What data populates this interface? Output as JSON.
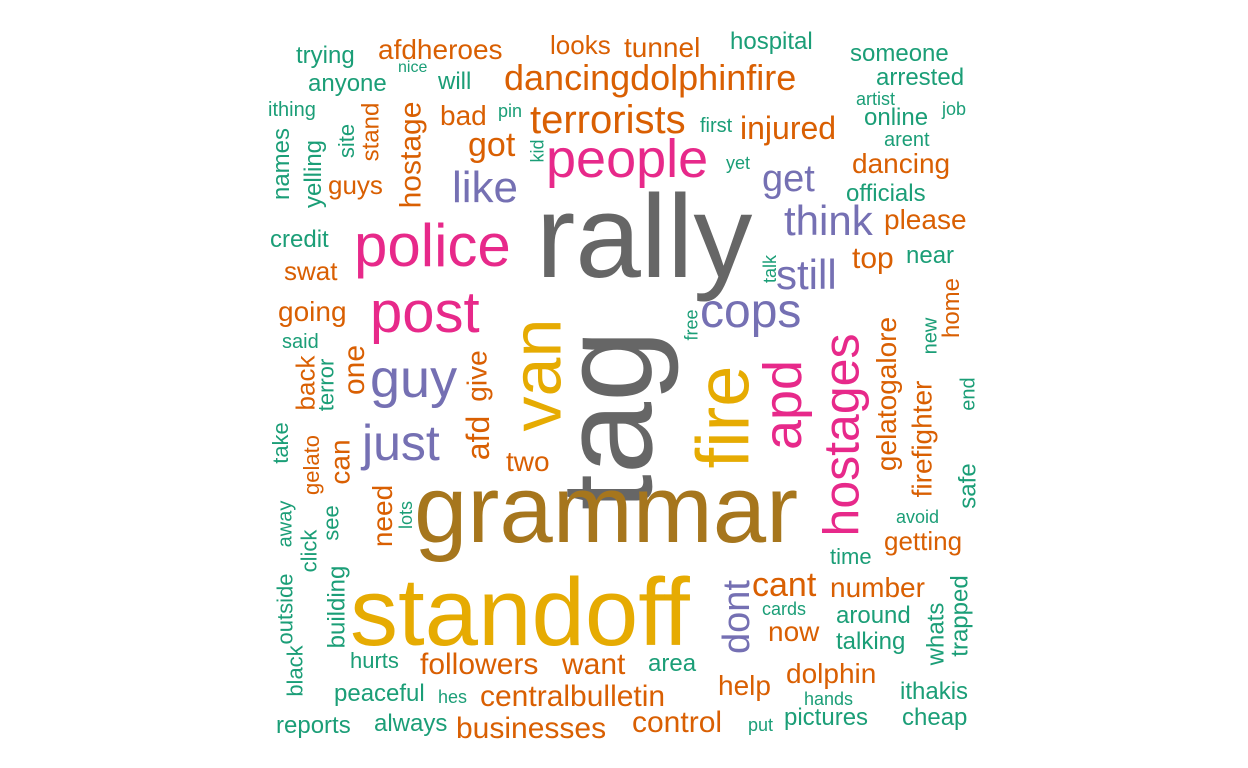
{
  "palette": {
    "gray": "#666666",
    "gold": "#a6761d",
    "yellow": "#e6ab02",
    "pink": "#e7298a",
    "purple": "#7570b3",
    "orange": "#d95f02",
    "teal": "#1b9e77"
  },
  "words": [
    "rally",
    "tag",
    "grammar",
    "standoff",
    "van",
    "fire",
    "police",
    "post",
    "people",
    "apd",
    "hostages",
    "guy",
    "just",
    "cops",
    "like",
    "think",
    "still",
    "get",
    "terrorists",
    "dancingdolphinfire",
    "dont",
    "cant",
    "got",
    "injured",
    "followers",
    "centralbulletin",
    "businesses",
    "control",
    "gelatogalore",
    "firefighter",
    "hostage",
    "afd",
    "one",
    "give",
    "two",
    "want",
    "now",
    "number",
    "dancing",
    "afdheroes",
    "tunnel",
    "looks",
    "please",
    "top",
    "swat",
    "going",
    "help",
    "dolphin",
    "getting",
    "need",
    "can",
    "back",
    "bad",
    "guys",
    "stand",
    "home",
    "hospital",
    "someone",
    "trying",
    "anyone",
    "will",
    "arrested",
    "online",
    "officials",
    "credit",
    "near",
    "area",
    "around",
    "talking",
    "peaceful",
    "reports",
    "always",
    "pictures",
    "cheap",
    "ithakis",
    "whats",
    "trapped",
    "safe",
    "end",
    "new",
    "names",
    "yelling",
    "site",
    "ithing",
    "nice",
    "pin",
    "kid",
    "first",
    "yet",
    "artist",
    "job",
    "arent",
    "talk",
    "free",
    "said",
    "terror",
    "gelato",
    "take",
    "see",
    "lots",
    "click",
    "away",
    "building",
    "outside",
    "black",
    "hurts",
    "hes",
    "put",
    "hands",
    "cards",
    "time",
    "avoid"
  ]
}
